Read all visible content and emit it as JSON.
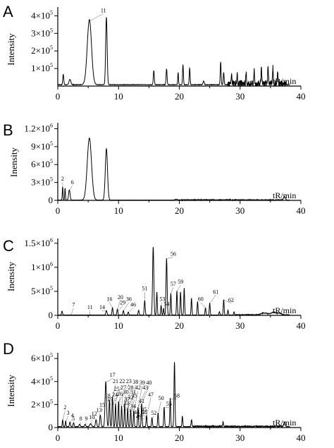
{
  "chart_data": [
    {
      "panel": "A",
      "type": "line",
      "ylabel": "Intensity",
      "xlabel": "tR/min",
      "xlim": [
        0,
        40
      ],
      "xticks": [
        "0",
        "10",
        "20",
        "30",
        "40"
      ],
      "ylim": [
        0,
        450000
      ],
      "yticks": [
        {
          "value": 100000,
          "mant": "1×10",
          "exp": "5"
        },
        {
          "value": 200000,
          "mant": "2×10",
          "exp": "5"
        },
        {
          "value": 300000,
          "mant": "3×10",
          "exp": "5"
        },
        {
          "value": 400000,
          "mant": "4×10",
          "exp": "5"
        }
      ],
      "baseline": 8000,
      "peaks": [
        {
          "x": 0.9,
          "y": 60000,
          "w": 0.08
        },
        {
          "x": 2.0,
          "y": 30000,
          "w": 0.15
        },
        {
          "x": 5.2,
          "y": 370000,
          "w": 0.35
        },
        {
          "x": 8.0,
          "y": 385000,
          "w": 0.12
        },
        {
          "x": 15.8,
          "y": 80000,
          "w": 0.08
        },
        {
          "x": 17.9,
          "y": 90000,
          "w": 0.08
        },
        {
          "x": 19.8,
          "y": 70000,
          "w": 0.06
        },
        {
          "x": 20.6,
          "y": 115000,
          "w": 0.07
        },
        {
          "x": 21.7,
          "y": 95000,
          "w": 0.07
        },
        {
          "x": 24.0,
          "y": 20000,
          "w": 0.1
        },
        {
          "x": 26.8,
          "y": 130000,
          "w": 0.07
        },
        {
          "x": 27.3,
          "y": 70000,
          "w": 0.07
        },
        {
          "x": 28.6,
          "y": 45000,
          "w": 0.06
        },
        {
          "x": 29.5,
          "y": 50000,
          "w": 0.06
        },
        {
          "x": 31.0,
          "y": 60000,
          "w": 0.06
        },
        {
          "x": 32.3,
          "y": 75000,
          "w": 0.06
        },
        {
          "x": 33.5,
          "y": 80000,
          "w": 0.06
        },
        {
          "x": 34.6,
          "y": 100000,
          "w": 0.06
        },
        {
          "x": 35.4,
          "y": 95000,
          "w": 0.06
        },
        {
          "x": 36.2,
          "y": 70000,
          "w": 0.06
        }
      ],
      "noise": {
        "from": 28,
        "to": 37.5,
        "amp": 35000
      },
      "labels": [
        {
          "text": "11",
          "x": 5.2,
          "y": 370000,
          "tx": 7.5,
          "ty": 420000
        }
      ]
    },
    {
      "panel": "B",
      "type": "line",
      "ylabel": "Inensity",
      "xlabel": "tR/min",
      "xlim": [
        0,
        40
      ],
      "xticks": [
        "0",
        "10",
        "20",
        "30",
        "40"
      ],
      "ylim": [
        0,
        1300000
      ],
      "yticks": [
        {
          "value": 0,
          "mant": "0",
          "exp": ""
        },
        {
          "value": 300000,
          "mant": "3×10",
          "exp": "5"
        },
        {
          "value": 600000,
          "mant": "6×10",
          "exp": "5"
        },
        {
          "value": 900000,
          "mant": "9×10",
          "exp": "5"
        },
        {
          "value": 1200000,
          "mant": "1.2×10",
          "exp": "6"
        }
      ],
      "baseline": 5000,
      "peaks": [
        {
          "x": 0.8,
          "y": 220000,
          "w": 0.06
        },
        {
          "x": 1.2,
          "y": 200000,
          "w": 0.06
        },
        {
          "x": 1.9,
          "y": 170000,
          "w": 0.12
        },
        {
          "x": 5.2,
          "y": 1040000,
          "w": 0.35
        },
        {
          "x": 8.0,
          "y": 860000,
          "w": 0.18
        },
        {
          "x": 19.5,
          "y": 15000,
          "w": 0.2
        },
        {
          "x": 37.3,
          "y": 60000,
          "w": 0.15
        }
      ],
      "noise": {
        "from": 20,
        "to": 37,
        "amp": 12000
      },
      "labels": [
        {
          "text": "2",
          "x": 0.8,
          "y": 220000,
          "tx": 0.8,
          "ty": 330000
        },
        {
          "text": "6",
          "x": 1.9,
          "y": 170000,
          "tx": 2.4,
          "ty": 270000
        }
      ]
    },
    {
      "panel": "C",
      "type": "line",
      "ylabel": "Inensity",
      "xlabel": "tR/min",
      "xlim": [
        0,
        40
      ],
      "xticks": [
        "0",
        "10",
        "20",
        "30",
        "40"
      ],
      "ylim": [
        0,
        1600000
      ],
      "yticks": [
        {
          "value": 0,
          "mant": "0",
          "exp": ""
        },
        {
          "value": 500000,
          "mant": "5×10",
          "exp": "5"
        },
        {
          "value": 1000000,
          "mant": "1×10",
          "exp": "6"
        },
        {
          "value": 1500000,
          "mant": "1.5×10",
          "exp": "6"
        }
      ],
      "baseline": 8000,
      "peaks": [
        {
          "x": 0.7,
          "y": 80000,
          "w": 0.08
        },
        {
          "x": 8.0,
          "y": 90000,
          "w": 0.1
        },
        {
          "x": 9.0,
          "y": 150000,
          "w": 0.08
        },
        {
          "x": 9.8,
          "y": 120000,
          "w": 0.08
        },
        {
          "x": 10.8,
          "y": 90000,
          "w": 0.08
        },
        {
          "x": 11.6,
          "y": 60000,
          "w": 0.08
        },
        {
          "x": 13.3,
          "y": 100000,
          "w": 0.08
        },
        {
          "x": 14.3,
          "y": 300000,
          "w": 0.08
        },
        {
          "x": 15.7,
          "y": 1420000,
          "w": 0.1
        },
        {
          "x": 16.3,
          "y": 480000,
          "w": 0.07
        },
        {
          "x": 17.0,
          "y": 200000,
          "w": 0.07
        },
        {
          "x": 17.4,
          "y": 130000,
          "w": 0.07
        },
        {
          "x": 17.9,
          "y": 1180000,
          "w": 0.09
        },
        {
          "x": 18.6,
          "y": 450000,
          "w": 0.07
        },
        {
          "x": 19.6,
          "y": 500000,
          "w": 0.07
        },
        {
          "x": 20.2,
          "y": 480000,
          "w": 0.07
        },
        {
          "x": 20.8,
          "y": 560000,
          "w": 0.07
        },
        {
          "x": 22.0,
          "y": 350000,
          "w": 0.07
        },
        {
          "x": 23.0,
          "y": 280000,
          "w": 0.07
        },
        {
          "x": 24.3,
          "y": 150000,
          "w": 0.07
        },
        {
          "x": 25.0,
          "y": 250000,
          "w": 0.07
        },
        {
          "x": 26.6,
          "y": 70000,
          "w": 0.07
        },
        {
          "x": 27.3,
          "y": 320000,
          "w": 0.07
        },
        {
          "x": 28.0,
          "y": 100000,
          "w": 0.07
        },
        {
          "x": 29.0,
          "y": 60000,
          "w": 0.07
        },
        {
          "x": 34.0,
          "y": 40000,
          "w": 0.5
        },
        {
          "x": 35.5,
          "y": 55000,
          "w": 0.4
        },
        {
          "x": 36.5,
          "y": 35000,
          "w": 0.3
        }
      ],
      "noise": {
        "from": 29,
        "to": 38,
        "amp": 15000
      },
      "labels": [
        {
          "text": "7",
          "x": 2.2,
          "y": 15000,
          "tx": 2.6,
          "ty": 180000
        },
        {
          "text": "11",
          "x": 5.3,
          "y": 15000,
          "tx": 5.3,
          "ty": 130000
        },
        {
          "text": "14",
          "x": 8.0,
          "y": 90000,
          "tx": 7.3,
          "ty": 130000
        },
        {
          "text": "16",
          "x": 9.0,
          "y": 150000,
          "tx": 8.5,
          "ty": 300000
        },
        {
          "text": "20",
          "x": 9.8,
          "y": 120000,
          "tx": 10.3,
          "ty": 340000
        },
        {
          "text": "29",
          "x": 10.0,
          "y": 100000,
          "tx": 10.7,
          "ty": 230000
        },
        {
          "text": "36",
          "x": 10.8,
          "y": 90000,
          "tx": 11.7,
          "ty": 300000
        },
        {
          "text": "46",
          "x": 11.6,
          "y": 60000,
          "tx": 12.4,
          "ty": 180000
        },
        {
          "text": "51",
          "x": 14.3,
          "y": 300000,
          "tx": 14.3,
          "ty": 520000
        },
        {
          "text": "53",
          "x": 17.0,
          "y": 200000,
          "tx": 17.2,
          "ty": 300000
        },
        {
          "text": "54",
          "x": 17.4,
          "y": 130000,
          "tx": 17.9,
          "ty": 200000
        },
        {
          "text": "56",
          "x": 17.9,
          "y": 1180000,
          "tx": 19.0,
          "ty": 1240000
        },
        {
          "text": "57",
          "x": 18.6,
          "y": 450000,
          "tx": 19.0,
          "ty": 620000
        },
        {
          "text": "59",
          "x": 19.6,
          "y": 500000,
          "tx": 20.2,
          "ty": 660000
        },
        {
          "text": "60",
          "x": 24.3,
          "y": 150000,
          "tx": 23.5,
          "ty": 300000
        },
        {
          "text": "61",
          "x": 25.0,
          "y": 250000,
          "tx": 26.0,
          "ty": 450000
        },
        {
          "text": "62",
          "x": 27.3,
          "y": 320000,
          "tx": 28.5,
          "ty": 280000
        }
      ]
    },
    {
      "panel": "D",
      "type": "line",
      "ylabel": "Intensity",
      "xlabel": "tR/min",
      "xlim": [
        0,
        40
      ],
      "xticks": [
        "0",
        "10",
        "20",
        "30",
        "40"
      ],
      "ylim": [
        0,
        650000
      ],
      "yticks": [
        {
          "value": 0,
          "mant": "0",
          "exp": ""
        },
        {
          "value": 200000,
          "mant": "2×10",
          "exp": "5"
        },
        {
          "value": 400000,
          "mant": "4×10",
          "exp": "5"
        },
        {
          "value": 600000,
          "mant": "6×10",
          "exp": "5"
        }
      ],
      "baseline": 8000,
      "peaks": [
        {
          "x": 0.8,
          "y": 60000,
          "w": 0.06
        },
        {
          "x": 1.3,
          "y": 50000,
          "w": 0.06
        },
        {
          "x": 2.0,
          "y": 40000,
          "w": 0.08
        },
        {
          "x": 2.6,
          "y": 35000,
          "w": 0.08
        },
        {
          "x": 3.6,
          "y": 20000,
          "w": 0.1
        },
        {
          "x": 4.5,
          "y": 20000,
          "w": 0.1
        },
        {
          "x": 5.4,
          "y": 25000,
          "w": 0.15
        },
        {
          "x": 6.3,
          "y": 60000,
          "w": 0.1
        },
        {
          "x": 7.0,
          "y": 100000,
          "w": 0.1
        },
        {
          "x": 7.9,
          "y": 390000,
          "w": 0.12
        },
        {
          "x": 8.5,
          "y": 230000,
          "w": 0.08
        },
        {
          "x": 9.0,
          "y": 260000,
          "w": 0.08
        },
        {
          "x": 9.5,
          "y": 200000,
          "w": 0.07
        },
        {
          "x": 10.0,
          "y": 220000,
          "w": 0.07
        },
        {
          "x": 10.5,
          "y": 180000,
          "w": 0.07
        },
        {
          "x": 11.0,
          "y": 200000,
          "w": 0.07
        },
        {
          "x": 11.5,
          "y": 160000,
          "w": 0.07
        },
        {
          "x": 12.0,
          "y": 150000,
          "w": 0.07
        },
        {
          "x": 12.5,
          "y": 140000,
          "w": 0.07
        },
        {
          "x": 13.2,
          "y": 170000,
          "w": 0.07
        },
        {
          "x": 13.8,
          "y": 200000,
          "w": 0.07
        },
        {
          "x": 14.6,
          "y": 100000,
          "w": 0.07
        },
        {
          "x": 15.5,
          "y": 80000,
          "w": 0.07
        },
        {
          "x": 16.5,
          "y": 120000,
          "w": 0.07
        },
        {
          "x": 17.5,
          "y": 170000,
          "w": 0.07
        },
        {
          "x": 18.5,
          "y": 250000,
          "w": 0.07
        },
        {
          "x": 19.2,
          "y": 560000,
          "w": 0.08
        },
        {
          "x": 20.5,
          "y": 90000,
          "w": 0.07
        },
        {
          "x": 22.0,
          "y": 60000,
          "w": 0.07
        },
        {
          "x": 27.2,
          "y": 40000,
          "w": 0.07
        },
        {
          "x": 37.3,
          "y": 40000,
          "w": 0.12
        }
      ],
      "noise": {
        "from": 22,
        "to": 37,
        "amp": 10000
      },
      "labels": [
        {
          "text": "2",
          "x": 0.8,
          "y": 60000,
          "tx": 1.2,
          "ty": 160000
        },
        {
          "text": "3",
          "x": 1.3,
          "y": 50000,
          "tx": 1.7,
          "ty": 110000
        },
        {
          "text": "4",
          "x": 2.0,
          "y": 40000,
          "tx": 2.4,
          "ty": 90000
        },
        {
          "text": "5",
          "x": 2.6,
          "y": 35000,
          "tx": 2.6,
          "ty": 60000
        },
        {
          "text": "8",
          "x": 3.6,
          "y": 20000,
          "tx": 3.8,
          "ty": 60000
        },
        {
          "text": "9",
          "x": 4.5,
          "y": 20000,
          "tx": 4.7,
          "ty": 60000
        },
        {
          "text": "10",
          "x": 5.4,
          "y": 25000,
          "tx": 5.6,
          "ty": 75000
        },
        {
          "text": "12",
          "x": 6.3,
          "y": 60000,
          "tx": 6.0,
          "ty": 105000
        },
        {
          "text": "13",
          "x": 7.0,
          "y": 100000,
          "tx": 6.8,
          "ty": 135000
        },
        {
          "text": "15",
          "x": 7.4,
          "y": 150000,
          "tx": 7.3,
          "ty": 180000
        },
        {
          "text": "17",
          "x": 7.9,
          "y": 390000,
          "tx": 9.0,
          "ty": 440000
        },
        {
          "text": "18",
          "x": 8.3,
          "y": 230000,
          "tx": 8.2,
          "ty": 260000
        },
        {
          "text": "21",
          "x": 9.0,
          "y": 260000,
          "tx": 9.5,
          "ty": 385000
        },
        {
          "text": "22",
          "x": 9.5,
          "y": 230000,
          "tx": 10.6,
          "ty": 385000
        },
        {
          "text": "23",
          "x": 10.0,
          "y": 220000,
          "tx": 11.7,
          "ty": 385000
        },
        {
          "text": "38",
          "x": 12.0,
          "y": 150000,
          "tx": 12.8,
          "ty": 380000
        },
        {
          "text": "39",
          "x": 13.2,
          "y": 170000,
          "tx": 13.9,
          "ty": 375000
        },
        {
          "text": "40",
          "x": 13.8,
          "y": 200000,
          "tx": 15.0,
          "ty": 375000
        },
        {
          "text": "25",
          "x": 9.5,
          "y": 200000,
          "tx": 9.7,
          "ty": 320000
        },
        {
          "text": "27",
          "x": 10.5,
          "y": 180000,
          "tx": 10.8,
          "ty": 330000
        },
        {
          "text": "28",
          "x": 11.0,
          "y": 200000,
          "tx": 12.0,
          "ty": 330000
        },
        {
          "text": "42",
          "x": 12.5,
          "y": 140000,
          "tx": 13.2,
          "ty": 330000
        },
        {
          "text": "43",
          "x": 13.2,
          "y": 170000,
          "tx": 14.4,
          "ty": 330000
        },
        {
          "text": "19",
          "x": 8.7,
          "y": 200000,
          "tx": 8.6,
          "ty": 230000
        },
        {
          "text": "24",
          "x": 9.2,
          "y": 200000,
          "tx": 9.4,
          "ty": 270000
        },
        {
          "text": "26",
          "x": 10.2,
          "y": 180000,
          "tx": 10.2,
          "ty": 275000
        },
        {
          "text": "30",
          "x": 10.8,
          "y": 180000,
          "tx": 11.2,
          "ty": 290000
        },
        {
          "text": "31",
          "x": 11.5,
          "y": 160000,
          "tx": 12.4,
          "ty": 290000
        },
        {
          "text": "32",
          "x": 11.2,
          "y": 150000,
          "tx": 12.0,
          "ty": 245000
        },
        {
          "text": "35",
          "x": 12.2,
          "y": 140000,
          "tx": 12.6,
          "ty": 260000
        },
        {
          "text": "33",
          "x": 11.6,
          "y": 140000,
          "tx": 11.3,
          "ty": 195000
        },
        {
          "text": "34",
          "x": 12.6,
          "y": 120000,
          "tx": 12.4,
          "ty": 170000
        },
        {
          "text": "37",
          "x": 12.0,
          "y": 120000,
          "tx": 11.4,
          "ty": 230000
        },
        {
          "text": "41",
          "x": 13.3,
          "y": 150000,
          "tx": 13.8,
          "ty": 215000
        },
        {
          "text": "44",
          "x": 13.8,
          "y": 100000,
          "tx": 13.0,
          "ty": 115000
        },
        {
          "text": "45",
          "x": 14.0,
          "y": 100000,
          "tx": 14.2,
          "ty": 140000
        },
        {
          "text": "47",
          "x": 14.6,
          "y": 100000,
          "tx": 15.3,
          "ty": 270000
        },
        {
          "text": "48",
          "x": 14.8,
          "y": 80000,
          "tx": 14.2,
          "ty": 115000
        },
        {
          "text": "49",
          "x": 14.3,
          "y": 80000,
          "tx": 13.3,
          "ty": 80000
        },
        {
          "text": "50",
          "x": 16.5,
          "y": 120000,
          "tx": 17.0,
          "ty": 240000
        },
        {
          "text": "52",
          "x": 15.5,
          "y": 80000,
          "tx": 15.8,
          "ty": 110000
        },
        {
          "text": "55",
          "x": 17.5,
          "y": 170000,
          "tx": 18.3,
          "ty": 190000
        },
        {
          "text": "58",
          "x": 18.5,
          "y": 250000,
          "tx": 19.6,
          "ty": 260000
        }
      ]
    }
  ]
}
